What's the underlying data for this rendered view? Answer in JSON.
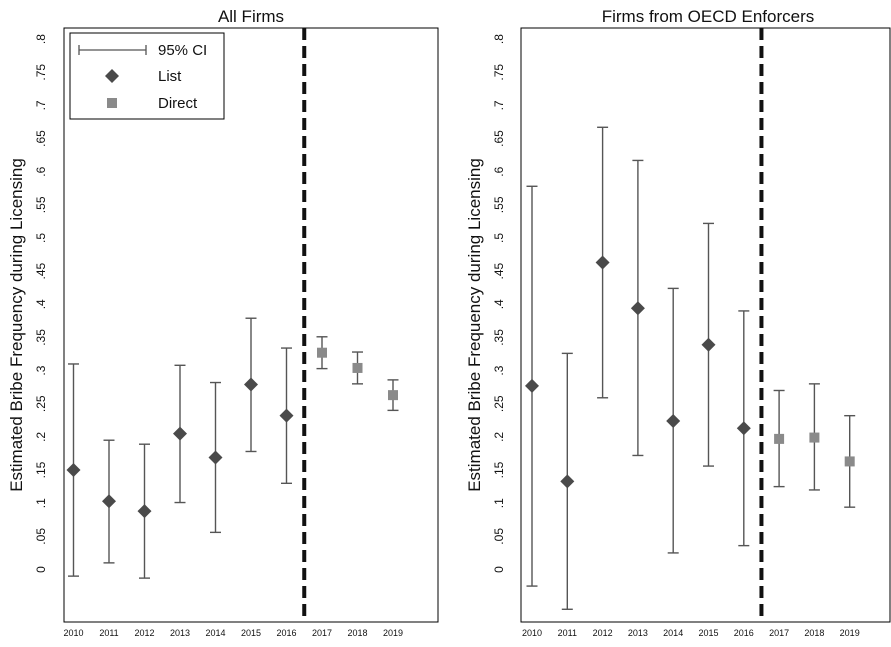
{
  "chart_data": [
    {
      "type": "scatter",
      "title": "All Firms",
      "ylabel": "Estimated Bribe Frequency during Licensing",
      "xlabel": "",
      "categories": [
        "2010",
        "2011",
        "2012",
        "2013",
        "2014",
        "2015",
        "2016",
        "2017",
        "2018",
        "2019"
      ],
      "y_ticks": [
        "0",
        ".05",
        ".1",
        ".15",
        ".2",
        ".25",
        ".3",
        ".35",
        ".4",
        ".45",
        ".5",
        ".55",
        ".6",
        ".65",
        ".7",
        ".75",
        ".8"
      ],
      "ylim": [
        -0.08,
        0.81
      ],
      "break_after": "2016",
      "legend": {
        "position": "top-left",
        "ci_label": "95% CI",
        "list_label": "List",
        "direct_label": "Direct"
      },
      "series": [
        {
          "name": "List",
          "marker": "diamond",
          "color": "#4a4a4a",
          "points": [
            {
              "x": "2010",
              "y": 0.15,
              "lo": -0.01,
              "hi": 0.31
            },
            {
              "x": "2011",
              "y": 0.103,
              "lo": 0.01,
              "hi": 0.195
            },
            {
              "x": "2012",
              "y": 0.088,
              "lo": -0.013,
              "hi": 0.189
            },
            {
              "x": "2013",
              "y": 0.205,
              "lo": 0.101,
              "hi": 0.308
            },
            {
              "x": "2014",
              "y": 0.169,
              "lo": 0.056,
              "hi": 0.282
            },
            {
              "x": "2015",
              "y": 0.279,
              "lo": 0.178,
              "hi": 0.379
            },
            {
              "x": "2016",
              "y": 0.232,
              "lo": 0.13,
              "hi": 0.334
            }
          ]
        },
        {
          "name": "Direct",
          "marker": "square",
          "color": "#8a8a8a",
          "points": [
            {
              "x": "2017",
              "y": 0.327,
              "lo": 0.303,
              "hi": 0.351
            },
            {
              "x": "2018",
              "y": 0.304,
              "lo": 0.28,
              "hi": 0.328
            },
            {
              "x": "2019",
              "y": 0.263,
              "lo": 0.24,
              "hi": 0.286
            }
          ]
        }
      ]
    },
    {
      "type": "scatter",
      "title": "Firms from OECD Enforcers",
      "ylabel": "Estimated Bribe Frequency during Licensing",
      "xlabel": "",
      "categories": [
        "2010",
        "2011",
        "2012",
        "2013",
        "2014",
        "2015",
        "2016",
        "2017",
        "2018",
        "2019"
      ],
      "y_ticks": [
        "0",
        ".05",
        ".1",
        ".15",
        ".2",
        ".25",
        ".3",
        ".35",
        ".4",
        ".45",
        ".5",
        ".55",
        ".6",
        ".65",
        ".7",
        ".75",
        ".8"
      ],
      "ylim": [
        -0.08,
        0.81
      ],
      "break_after": "2016",
      "series": [
        {
          "name": "List",
          "marker": "diamond",
          "color": "#4a4a4a",
          "points": [
            {
              "x": "2010",
              "y": 0.277,
              "lo": -0.025,
              "hi": 0.578
            },
            {
              "x": "2011",
              "y": 0.133,
              "lo": -0.06,
              "hi": 0.326
            },
            {
              "x": "2012",
              "y": 0.463,
              "lo": 0.259,
              "hi": 0.667
            },
            {
              "x": "2013",
              "y": 0.394,
              "lo": 0.172,
              "hi": 0.617
            },
            {
              "x": "2014",
              "y": 0.224,
              "lo": 0.025,
              "hi": 0.424
            },
            {
              "x": "2015",
              "y": 0.339,
              "lo": 0.156,
              "hi": 0.522
            },
            {
              "x": "2016",
              "y": 0.213,
              "lo": 0.036,
              "hi": 0.39
            }
          ]
        },
        {
          "name": "Direct",
          "marker": "square",
          "color": "#8a8a8a",
          "points": [
            {
              "x": "2017",
              "y": 0.197,
              "lo": 0.125,
              "hi": 0.27
            },
            {
              "x": "2018",
              "y": 0.199,
              "lo": 0.12,
              "hi": 0.28
            },
            {
              "x": "2019",
              "y": 0.163,
              "lo": 0.094,
              "hi": 0.232
            }
          ]
        }
      ]
    }
  ]
}
